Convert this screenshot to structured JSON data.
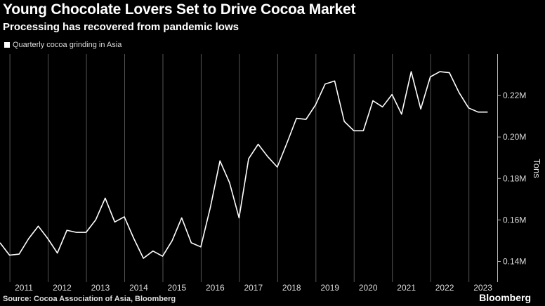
{
  "header": {
    "title": "Young Chocolate Lovers Set to Drive Cocoa Market",
    "subtitle": "Processing has recovered from pandemic lows"
  },
  "footer": {
    "source": "Source: Cocoa Association of Asia, Bloomberg",
    "brand": "Bloomberg"
  },
  "colors": {
    "background": "#000000",
    "line": "#ffffff",
    "grid": "#555555"
  },
  "chart_data": {
    "type": "line",
    "title": "Young Chocolate Lovers Set to Drive Cocoa Market",
    "subtitle": "Processing has recovered from pandemic lows",
    "ylabel": "Tons",
    "xlabel": "",
    "legend": [
      "Quarterly cocoa grinding in Asia"
    ],
    "legend_position": "top-left",
    "grid": "vertical",
    "y_axis_side": "right",
    "xlim": [
      2010.75,
      2023.75
    ],
    "ylim": [
      0.13,
      0.24
    ],
    "x_ticks": [
      "2011",
      "2012",
      "2013",
      "2014",
      "2015",
      "2016",
      "2017",
      "2018",
      "2019",
      "2020",
      "2021",
      "2022",
      "2023"
    ],
    "y_ticks": [
      {
        "value": 0.14,
        "label": "0.14M"
      },
      {
        "value": 0.16,
        "label": "0.16M"
      },
      {
        "value": 0.18,
        "label": "0.18M"
      },
      {
        "value": 0.2,
        "label": "0.20M"
      },
      {
        "value": 0.22,
        "label": "0.22M"
      }
    ],
    "series": [
      {
        "name": "Quarterly cocoa grinding in Asia",
        "x": [
          "2010 Q4",
          "2011 Q1",
          "2011 Q2",
          "2011 Q3",
          "2011 Q4",
          "2012 Q1",
          "2012 Q2",
          "2012 Q3",
          "2012 Q4",
          "2013 Q1",
          "2013 Q2",
          "2013 Q3",
          "2013 Q4",
          "2014 Q1",
          "2014 Q2",
          "2014 Q3",
          "2014 Q4",
          "2015 Q1",
          "2015 Q2",
          "2015 Q3",
          "2015 Q4",
          "2016 Q1",
          "2016 Q2",
          "2016 Q3",
          "2016 Q4",
          "2017 Q1",
          "2017 Q2",
          "2017 Q3",
          "2017 Q4",
          "2018 Q1",
          "2018 Q2",
          "2018 Q3",
          "2018 Q4",
          "2019 Q1",
          "2019 Q2",
          "2019 Q3",
          "2019 Q4",
          "2020 Q1",
          "2020 Q2",
          "2020 Q3",
          "2020 Q4",
          "2021 Q1",
          "2021 Q2",
          "2021 Q3",
          "2021 Q4",
          "2022 Q1",
          "2022 Q2",
          "2022 Q3",
          "2022 Q4",
          "2023 Q1",
          "2023 Q2",
          "2023 Q3"
        ],
        "values": [
          0.149,
          0.143,
          0.1435,
          0.151,
          0.157,
          0.151,
          0.144,
          0.155,
          0.154,
          0.154,
          0.16,
          0.1705,
          0.159,
          0.1615,
          0.151,
          0.1415,
          0.145,
          0.1425,
          0.15,
          0.161,
          0.149,
          0.147,
          0.166,
          0.1885,
          0.178,
          0.161,
          0.1895,
          0.1965,
          0.1905,
          0.1855,
          0.197,
          0.209,
          0.2085,
          0.2155,
          0.2255,
          0.227,
          0.2075,
          0.203,
          0.203,
          0.2175,
          0.2145,
          0.2205,
          0.211,
          0.2315,
          0.2135,
          0.229,
          0.2315,
          0.231,
          0.2215,
          0.214,
          0.212,
          0.212
        ]
      }
    ]
  }
}
